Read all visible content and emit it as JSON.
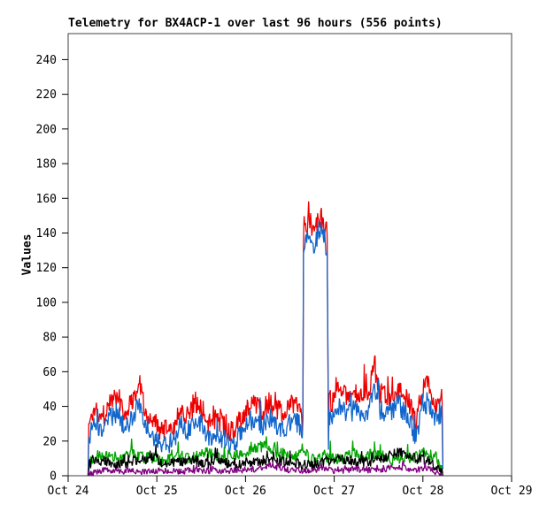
{
  "chart_data": {
    "type": "line",
    "title": "Telemetry for BX4ACP-1 over last 96 hours (556 points)",
    "ylabel": "Values",
    "xlabel": "",
    "y_ticks": [
      0,
      20,
      40,
      60,
      80,
      100,
      120,
      140,
      160,
      180,
      200,
      220,
      240
    ],
    "x_ticks": [
      "Oct 24",
      "Oct 25",
      "Oct 26",
      "Oct 27",
      "Oct 28",
      "Oct 29"
    ],
    "ylim": [
      0,
      255
    ],
    "x_days": 5,
    "grid": false,
    "legend": null,
    "points": 556,
    "duration_hours": 96,
    "data_start_day_offset": 0.225,
    "seed": 1337,
    "frame_color": "#404040",
    "tick_color": "#000000",
    "series": [
      {
        "name": "red",
        "color": "#ee0000",
        "noise": 6.5,
        "spike_prob": 0.05,
        "spike_mult": 2.2,
        "min": 0.5,
        "keyframes": [
          [
            0,
            2
          ],
          [
            0.2,
            30
          ],
          [
            2,
            40
          ],
          [
            4,
            34
          ],
          [
            6,
            43
          ],
          [
            8,
            47
          ],
          [
            10,
            36
          ],
          [
            12,
            44
          ],
          [
            13.8,
            56
          ],
          [
            15,
            42
          ],
          [
            17,
            33
          ],
          [
            20,
            25
          ],
          [
            23,
            28
          ],
          [
            25,
            39
          ],
          [
            27,
            35
          ],
          [
            29,
            43
          ],
          [
            31,
            38
          ],
          [
            33,
            30
          ],
          [
            35,
            33
          ],
          [
            37,
            28
          ],
          [
            39,
            25
          ],
          [
            41,
            31
          ],
          [
            43,
            39
          ],
          [
            45,
            41
          ],
          [
            47,
            37
          ],
          [
            49,
            43
          ],
          [
            51,
            38
          ],
          [
            53,
            36
          ],
          [
            55,
            41
          ],
          [
            57,
            39
          ],
          [
            57.9,
            34
          ],
          [
            58.05,
            6
          ],
          [
            58.3,
            138
          ],
          [
            59,
            144
          ],
          [
            60,
            147
          ],
          [
            61,
            140
          ],
          [
            62,
            146
          ],
          [
            63,
            149
          ],
          [
            64,
            142
          ],
          [
            64.8,
            139
          ],
          [
            64.95,
            8
          ],
          [
            65.2,
            44
          ],
          [
            66,
            42
          ],
          [
            68,
            50
          ],
          [
            70,
            45
          ],
          [
            72,
            48
          ],
          [
            74,
            44
          ],
          [
            76,
            50
          ],
          [
            77.2,
            62
          ],
          [
            77.5,
            75
          ],
          [
            77.8,
            60
          ],
          [
            79,
            48
          ],
          [
            81,
            45
          ],
          [
            83,
            50
          ],
          [
            85,
            48
          ],
          [
            87,
            42
          ],
          [
            88.5,
            30
          ],
          [
            90,
            44
          ],
          [
            91.8,
            58
          ],
          [
            92.2,
            52
          ],
          [
            94,
            42
          ],
          [
            95.8,
            45
          ],
          [
            96,
            3
          ]
        ]
      },
      {
        "name": "blue",
        "color": "#1166cc",
        "noise": 6,
        "spike_prob": 0.05,
        "spike_mult": 2.0,
        "min": 0.5,
        "keyframes": [
          [
            0,
            1
          ],
          [
            0.2,
            22
          ],
          [
            2,
            30
          ],
          [
            4,
            26
          ],
          [
            6,
            33
          ],
          [
            8,
            36
          ],
          [
            10,
            27
          ],
          [
            12,
            34
          ],
          [
            13.8,
            43
          ],
          [
            15,
            32
          ],
          [
            17,
            24
          ],
          [
            20,
            17
          ],
          [
            23,
            20
          ],
          [
            25,
            30
          ],
          [
            27,
            26
          ],
          [
            29,
            33
          ],
          [
            31,
            29
          ],
          [
            33,
            21
          ],
          [
            35,
            24
          ],
          [
            37,
            20
          ],
          [
            39,
            16
          ],
          [
            41,
            23
          ],
          [
            43,
            30
          ],
          [
            45,
            32
          ],
          [
            47,
            28
          ],
          [
            49,
            34
          ],
          [
            51,
            29
          ],
          [
            53,
            27
          ],
          [
            55,
            32
          ],
          [
            57,
            30
          ],
          [
            57.9,
            22
          ],
          [
            58.05,
            2
          ],
          [
            58.3,
            130
          ],
          [
            59,
            136
          ],
          [
            60,
            140
          ],
          [
            61,
            132
          ],
          [
            62,
            138
          ],
          [
            63,
            142
          ],
          [
            64,
            134
          ],
          [
            64.8,
            131
          ],
          [
            64.95,
            2
          ],
          [
            65.2,
            33
          ],
          [
            66,
            32
          ],
          [
            68,
            39
          ],
          [
            70,
            35
          ],
          [
            72,
            38
          ],
          [
            74,
            34
          ],
          [
            76,
            39
          ],
          [
            77.5,
            52
          ],
          [
            79,
            38
          ],
          [
            81,
            35
          ],
          [
            83,
            40
          ],
          [
            85,
            38
          ],
          [
            87,
            32
          ],
          [
            88.5,
            21
          ],
          [
            90,
            34
          ],
          [
            92,
            44
          ],
          [
            94,
            32
          ],
          [
            95.8,
            36
          ],
          [
            96,
            2
          ]
        ]
      },
      {
        "name": "green",
        "color": "#00a400",
        "noise": 3.5,
        "spike_prob": 0.07,
        "spike_mult": 2.2,
        "min": 0.3,
        "keyframes": [
          [
            0,
            1
          ],
          [
            0.3,
            8
          ],
          [
            4,
            12
          ],
          [
            8,
            9
          ],
          [
            12,
            13
          ],
          [
            16,
            10
          ],
          [
            20,
            8
          ],
          [
            24,
            12
          ],
          [
            28,
            10
          ],
          [
            32,
            13
          ],
          [
            36,
            10
          ],
          [
            40,
            12
          ],
          [
            44,
            14
          ],
          [
            47,
            17
          ],
          [
            49,
            16
          ],
          [
            52,
            13
          ],
          [
            56,
            11
          ],
          [
            58.3,
            16
          ],
          [
            60,
            9
          ],
          [
            64,
            11
          ],
          [
            68,
            9
          ],
          [
            71,
            13
          ],
          [
            74,
            11
          ],
          [
            78,
            13
          ],
          [
            82,
            9
          ],
          [
            85,
            11
          ],
          [
            88,
            10
          ],
          [
            91,
            13
          ],
          [
            94,
            11
          ],
          [
            96,
            1
          ]
        ]
      },
      {
        "name": "black",
        "color": "#000000",
        "noise": 3,
        "spike_prob": 0.06,
        "spike_mult": 2.0,
        "min": 0.3,
        "keyframes": [
          [
            0,
            1
          ],
          [
            0.3,
            7
          ],
          [
            4,
            9
          ],
          [
            8,
            6
          ],
          [
            12,
            8
          ],
          [
            16,
            10
          ],
          [
            18,
            11
          ],
          [
            20,
            7
          ],
          [
            24,
            8
          ],
          [
            28,
            9
          ],
          [
            32,
            7
          ],
          [
            36,
            8
          ],
          [
            40,
            6
          ],
          [
            44,
            8
          ],
          [
            48,
            9
          ],
          [
            52,
            8
          ],
          [
            56,
            7
          ],
          [
            60,
            6
          ],
          [
            64,
            8
          ],
          [
            68,
            10
          ],
          [
            72,
            8
          ],
          [
            76,
            8
          ],
          [
            80,
            10
          ],
          [
            84,
            14
          ],
          [
            85,
            13
          ],
          [
            88,
            10
          ],
          [
            92,
            9
          ],
          [
            96,
            1
          ]
        ]
      },
      {
        "name": "purple",
        "color": "#800080",
        "noise": 2,
        "spike_prob": 0.06,
        "spike_mult": 1.8,
        "min": 0.1,
        "keyframes": [
          [
            0,
            0.5
          ],
          [
            4,
            3
          ],
          [
            8,
            2.5
          ],
          [
            12,
            3
          ],
          [
            16,
            2.5
          ],
          [
            20,
            3
          ],
          [
            24,
            2.5
          ],
          [
            28,
            3
          ],
          [
            32,
            2.5
          ],
          [
            36,
            3
          ],
          [
            40,
            3
          ],
          [
            44,
            3.5
          ],
          [
            48,
            5
          ],
          [
            50,
            6
          ],
          [
            52,
            4
          ],
          [
            56,
            3
          ],
          [
            60,
            3
          ],
          [
            64,
            3.5
          ],
          [
            68,
            3
          ],
          [
            72,
            3.5
          ],
          [
            76,
            3
          ],
          [
            80,
            4
          ],
          [
            84,
            4.5
          ],
          [
            88,
            3.5
          ],
          [
            92,
            4
          ],
          [
            96,
            0.5
          ]
        ]
      }
    ]
  }
}
